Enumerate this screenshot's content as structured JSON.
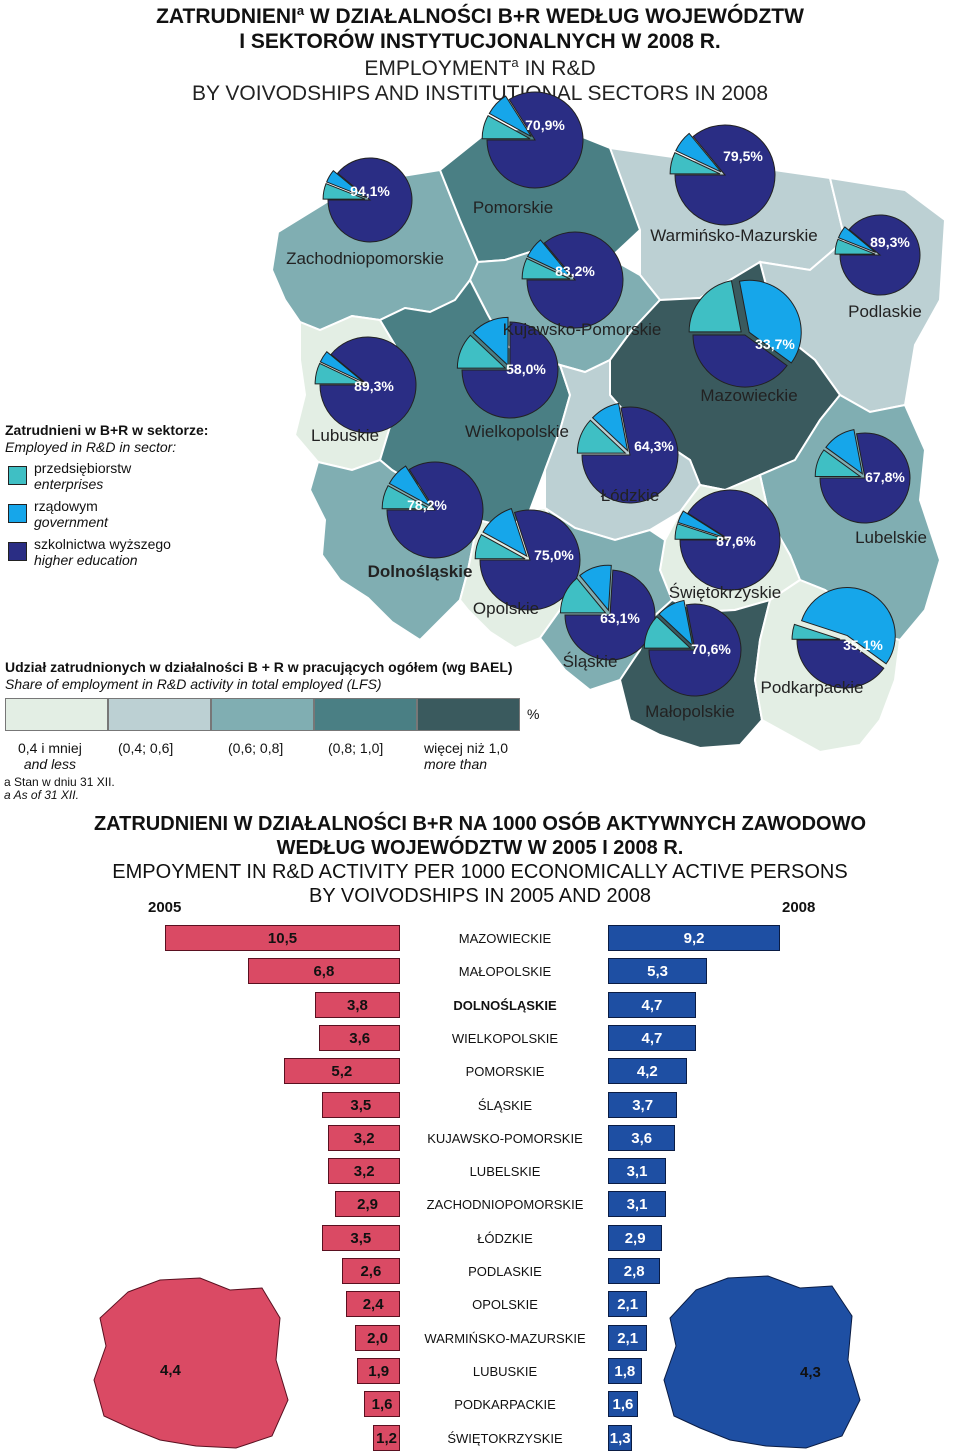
{
  "title": {
    "pl_line1": "ZATRUDNIENI",
    "pl_line1_rest": " W DZIAŁALNOŚCI B+R WEDŁUG WOJEWÓDZTW",
    "pl_line2": "I SEKTORÓW INSTYTUCJONALNYCH W 2008 R.",
    "en_line1": "EMPLOYMENT",
    "en_line1_rest": " IN R&D",
    "en_line2": "BY VOIVODSHIPS AND INSTITUTIONAL SECTORS IN 2008",
    "footnote_mark": "a"
  },
  "sector_legend": {
    "heading_pl": "Zatrudnieni w B+R w sektorze:",
    "heading_en": "Employed in R&D in sector:",
    "items": [
      {
        "pl": "przedsiębiorstw",
        "en": "enterprises",
        "color": "#3fbfc4"
      },
      {
        "pl": "rządowym",
        "en": "government",
        "color": "#16a6ea"
      },
      {
        "pl": "szkolnictwa wyższego",
        "en": "higher education",
        "color": "#2a2d84"
      }
    ]
  },
  "share_legend": {
    "heading_pl": "Udział zatrudnionych w działalności B + R w pracujących ogółem (wg BAEL)",
    "heading_en": "Share of employment in R&D activity in total employed (LFS)",
    "unit": "%",
    "classes": [
      {
        "label": "0,4 i mniej",
        "label_en": "and less",
        "color": "#e3eee4"
      },
      {
        "label": "(0,4; 0,6]",
        "label_en": "",
        "color": "#bcd0d3"
      },
      {
        "label": "(0,6; 0,8]",
        "label_en": "",
        "color": "#80aeb2"
      },
      {
        "label": "(0,8; 1,0]",
        "label_en": "",
        "color": "#4a7f84"
      },
      {
        "label": "więcej niż 1,0",
        "label_en": "more than",
        "color": "#3a5a5e"
      }
    ],
    "footnote_pl": "a Stan w dniu 31 XII.",
    "footnote_en": "a As of 31 XII."
  },
  "map": {
    "regions": [
      {
        "name": "Zachodniopomorskie",
        "pct": "94,1%",
        "class": 2
      },
      {
        "name": "Pomorskie",
        "pct": "70,9%",
        "class": 3
      },
      {
        "name": "Warmińsko-Mazurskie",
        "pct": "79,5%",
        "class": 1
      },
      {
        "name": "Podlaskie",
        "pct": "89,3%",
        "class": 1
      },
      {
        "name": "Kujawsko-Pomorskie",
        "pct": "83,2%",
        "class": 2
      },
      {
        "name": "Mazowieckie",
        "pct": "33,7%",
        "class": 4
      },
      {
        "name": "Lubuskie",
        "pct": "89,3%",
        "class": 0
      },
      {
        "name": "Wielkopolskie",
        "pct": "58,0%",
        "class": 3
      },
      {
        "name": "Łódzkie",
        "pct": "64,3%",
        "class": 1
      },
      {
        "name": "Lubelskie",
        "pct": "67,8%",
        "class": 2
      },
      {
        "name": "Dolnośląskie",
        "pct": "78,2%",
        "class": 2
      },
      {
        "name": "Opolskie",
        "pct": "75,0%",
        "class": 0
      },
      {
        "name": "Świętokrzyskie",
        "pct": "87,6%",
        "class": 0
      },
      {
        "name": "Śląskie",
        "pct": "63,1%",
        "class": 2
      },
      {
        "name": "Małopolskie",
        "pct": "70,6%",
        "class": 4
      },
      {
        "name": "Podkarpackie",
        "pct": "35,1%",
        "class": 0
      }
    ]
  },
  "bar_section": {
    "title_pl_1": "ZATRUDNIENI W DZIAŁALNOŚCI B+R NA 1000 OSÓB AKTYWNYCH ZAWODOWO",
    "title_pl_2": "WEDŁUG WOJEWÓDZTW W 2005 I 2008 R.",
    "title_en_1": "EMPOYMENT IN R&D ACTIVITY PER 1000 ECONOMICALLY ACTIVE PERSONS",
    "title_en_2": "BY VOIVODSHIPS IN 2005 AND 2008",
    "year_left": "2005",
    "year_right": "2008",
    "poland_2005": "4,4",
    "poland_2008": "4,3"
  },
  "chart_data": {
    "type": "bar",
    "title": "ZATRUDNIENI W DZIAŁALNOŚCI B+R NA 1000 OSÓB AKTYWNYCH ZAWODOWO WEDŁUG WOJEWÓDZTW W 2005 I 2008 R.",
    "categories": [
      "MAZOWIECKIE",
      "MAŁOPOLSKIE",
      "DOLNOŚLĄSKIE",
      "WIELKOPOLSKIE",
      "POMORSKIE",
      "ŚLĄSKIE",
      "KUJAWSKO-POMORSKIE",
      "LUBELSKIE",
      "ZACHODNIOPOMORSKIE",
      "ŁÓDZKIE",
      "PODLASKIE",
      "OPOLSKIE",
      "WARMIŃSKO-MAZURSKIE",
      "LUBUSKIE",
      "PODKARPACKIE",
      "ŚWIĘTOKRZYSKIE"
    ],
    "series": [
      {
        "name": "2005",
        "values": [
          10.5,
          6.8,
          3.8,
          3.6,
          5.2,
          3.5,
          3.2,
          3.2,
          2.9,
          3.5,
          2.6,
          2.4,
          2.0,
          1.9,
          1.6,
          1.2
        ],
        "labels": [
          "10,5",
          "6,8",
          "3,8",
          "3,6",
          "5,2",
          "3,5",
          "3,2",
          "3,2",
          "2,9",
          "3,5",
          "2,6",
          "2,4",
          "2,0",
          "1,9",
          "1,6",
          "1,2"
        ]
      },
      {
        "name": "2008",
        "values": [
          9.2,
          5.3,
          4.7,
          4.7,
          4.2,
          3.7,
          3.6,
          3.1,
          3.1,
          2.9,
          2.8,
          2.1,
          2.1,
          1.8,
          1.6,
          1.3
        ],
        "labels": [
          "9,2",
          "5,3",
          "4,7",
          "4,7",
          "4,2",
          "3,7",
          "3,6",
          "3,1",
          "3,1",
          "2,9",
          "2,8",
          "2,1",
          "2,1",
          "1,8",
          "1,6",
          "1,3"
        ]
      }
    ],
    "highlight_category": "DOLNOŚLĄSKIE",
    "xlim": [
      0,
      10.5
    ]
  }
}
